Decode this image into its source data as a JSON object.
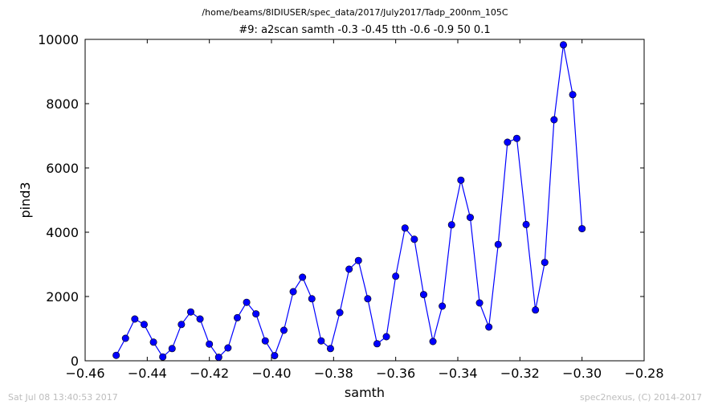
{
  "suptitle": "/home/beams/8IDIUSER/spec_data/2017/July2017/Tadp_200nm_105C",
  "footer": {
    "timestamp": "Sat Jul 08 13:40:53 2017",
    "credit": "spec2nexus, (C) 2014-2017"
  },
  "chart_data": {
    "type": "line",
    "title": "#9: a2scan  samth -0.3 -0.45  tth -0.6 -0.9  50 0.1",
    "xlabel": "samth",
    "ylabel": "pind3",
    "xlim": [
      -0.46,
      -0.28
    ],
    "ylim": [
      0,
      10000
    ],
    "xticks": [
      -0.46,
      -0.44,
      -0.42,
      -0.4,
      -0.38,
      -0.36,
      -0.34,
      -0.32,
      -0.3,
      -0.28
    ],
    "xtick_labels": [
      "−0.46",
      "−0.44",
      "−0.42",
      "−0.40",
      "−0.38",
      "−0.36",
      "−0.34",
      "−0.32",
      "−0.30",
      "−0.28"
    ],
    "yticks": [
      0,
      2000,
      4000,
      6000,
      8000,
      10000
    ],
    "ytick_labels": [
      "0",
      "2000",
      "4000",
      "6000",
      "8000",
      "10000"
    ],
    "grid": false,
    "marker": "circle",
    "line_color": "#0000ff",
    "marker_color": "#0000ff",
    "series": [
      {
        "x": [
          -0.45,
          -0.447,
          -0.444,
          -0.441,
          -0.438,
          -0.435,
          -0.432,
          -0.429,
          -0.426,
          -0.423,
          -0.42,
          -0.417,
          -0.414,
          -0.411,
          -0.408,
          -0.405,
          -0.402,
          -0.399,
          -0.396,
          -0.393,
          -0.39,
          -0.387,
          -0.384,
          -0.381,
          -0.378,
          -0.375,
          -0.372,
          -0.369,
          -0.366,
          -0.363,
          -0.36,
          -0.357,
          -0.354,
          -0.351,
          -0.348,
          -0.345,
          -0.342,
          -0.339,
          -0.336,
          -0.333,
          -0.33,
          -0.327,
          -0.324,
          -0.321,
          -0.318,
          -0.315,
          -0.312,
          -0.309,
          -0.306,
          -0.303,
          -0.3
        ],
        "y": [
          170,
          700,
          1300,
          1130,
          580,
          120,
          380,
          1130,
          1520,
          1300,
          520,
          110,
          400,
          1340,
          1820,
          1460,
          620,
          160,
          950,
          2150,
          2600,
          1930,
          620,
          380,
          1500,
          2850,
          3120,
          1930,
          530,
          750,
          2630,
          4130,
          3780,
          2060,
          600,
          1700,
          4230,
          5620,
          4460,
          1800,
          1050,
          3620,
          6800,
          6920,
          4240,
          1580,
          3060,
          7500,
          9830,
          8280,
          4110
        ]
      }
    ]
  }
}
